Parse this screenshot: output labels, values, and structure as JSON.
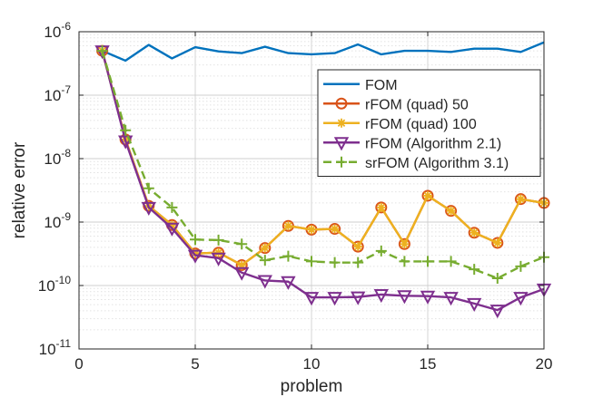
{
  "chart_data": {
    "type": "line",
    "title": "",
    "xlabel": "problem",
    "ylabel": "relative error",
    "yscale": "log",
    "xlim": [
      0,
      20
    ],
    "ylim": [
      1e-11,
      1e-06
    ],
    "grid": true,
    "xticks": [
      {
        "value": 0,
        "label": "0"
      },
      {
        "value": 5,
        "label": "5"
      },
      {
        "value": 10,
        "label": "10"
      },
      {
        "value": 15,
        "label": "15"
      },
      {
        "value": 20,
        "label": "20"
      }
    ],
    "yticks": [
      {
        "exp": -11,
        "base": "10",
        "sup": "-11"
      },
      {
        "exp": -10,
        "base": "10",
        "sup": "-10"
      },
      {
        "exp": -9,
        "base": "10",
        "sup": "-9"
      },
      {
        "exp": -8,
        "base": "10",
        "sup": "-8"
      },
      {
        "exp": -7,
        "base": "10",
        "sup": "-7"
      },
      {
        "exp": -6,
        "base": "10",
        "sup": "-6"
      }
    ],
    "legend_position": "top-right",
    "x": [
      1,
      2,
      3,
      4,
      5,
      6,
      7,
      8,
      9,
      10,
      11,
      12,
      13,
      14,
      15,
      16,
      17,
      18,
      19,
      20
    ],
    "series": [
      {
        "name": "FOM",
        "color": "#0072BD",
        "dash": "solid",
        "marker": "none",
        "values": [
          5e-07,
          3.5e-07,
          6.2e-07,
          3.8e-07,
          5.7e-07,
          4.9e-07,
          4.6e-07,
          5.8e-07,
          4.6e-07,
          4.4e-07,
          4.6e-07,
          6.3e-07,
          4.4e-07,
          5e-07,
          5e-07,
          4.8e-07,
          5.4e-07,
          5.4e-07,
          4.8e-07,
          6.8e-07
        ]
      },
      {
        "name": "rFOM (quad) 50",
        "color": "#D95319",
        "dash": "solid",
        "marker": "circle",
        "values": [
          5e-07,
          2e-08,
          1.8e-09,
          9e-10,
          3.2e-10,
          3.3e-10,
          2.1e-10,
          3.9e-10,
          8.7e-10,
          7.6e-10,
          7.8e-10,
          4.1e-10,
          1.7e-09,
          4.5e-10,
          2.6e-09,
          1.5e-09,
          6.8e-10,
          4.7e-10,
          2.3e-09,
          2e-09
        ]
      },
      {
        "name": "rFOM (quad) 100",
        "color": "#EDB120",
        "dash": "solid",
        "marker": "asterisk",
        "values": [
          5e-07,
          2e-08,
          1.8e-09,
          9e-10,
          3.2e-10,
          3.3e-10,
          2.1e-10,
          3.9e-10,
          8.7e-10,
          7.6e-10,
          7.8e-10,
          4.1e-10,
          1.7e-09,
          4.5e-10,
          2.6e-09,
          1.5e-09,
          6.8e-10,
          4.7e-10,
          2.3e-09,
          2e-09
        ]
      },
      {
        "name": "rFOM (Algorithm 2.1)",
        "color": "#7E2F8E",
        "dash": "solid",
        "marker": "triangle-down",
        "values": [
          5e-07,
          1.9e-08,
          1.7e-09,
          8e-10,
          3e-10,
          2.7e-10,
          1.6e-10,
          1.2e-10,
          1.15e-10,
          6.5e-11,
          6.5e-11,
          6.6e-11,
          7.2e-11,
          6.9e-11,
          6.8e-11,
          6.5e-11,
          5.2e-11,
          4.1e-11,
          6.5e-11,
          8.8e-11
        ]
      },
      {
        "name": "srFOM (Algorithm 3.1)",
        "color": "#77AC30",
        "dash": "dashed",
        "marker": "plus",
        "values": [
          5e-07,
          2.8e-08,
          3.4e-09,
          1.7e-09,
          5.3e-10,
          5.2e-10,
          4.5e-10,
          2.5e-10,
          2.9e-10,
          2.4e-10,
          2.3e-10,
          2.3e-10,
          3.5e-10,
          2.4e-10,
          2.4e-10,
          2.4e-10,
          1.8e-10,
          1.3e-10,
          2e-10,
          2.8e-10
        ]
      }
    ]
  }
}
